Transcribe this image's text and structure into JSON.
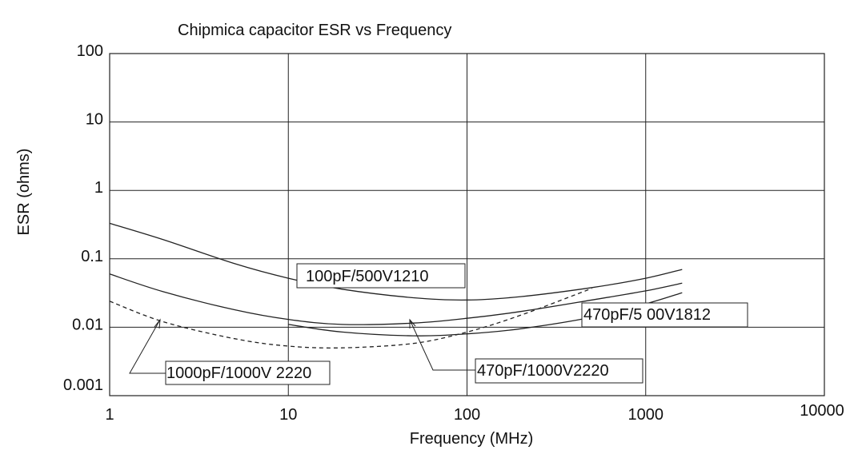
{
  "chart_data": {
    "type": "line",
    "title": "Chipmica capacitor ESR vs Frequency",
    "xlabel": "Frequency (MHz)",
    "ylabel": "ESR (ohms)",
    "x_scale": "log",
    "y_scale": "log",
    "xlim": [
      1,
      10000
    ],
    "ylim": [
      0.001,
      100
    ],
    "grid": true,
    "x_ticks": [
      {
        "value": 1,
        "label": "1"
      },
      {
        "value": 10,
        "label": "10"
      },
      {
        "value": 100,
        "label": "100"
      },
      {
        "value": 1000,
        "label": "1000"
      },
      {
        "value": 10000,
        "label": "10000"
      }
    ],
    "y_ticks": [
      {
        "value": 0.001,
        "label": "0.001"
      },
      {
        "value": 0.01,
        "label": "0.01"
      },
      {
        "value": 0.1,
        "label": "0.1"
      },
      {
        "value": 1,
        "label": "1"
      },
      {
        "value": 10,
        "label": "10"
      },
      {
        "value": 100,
        "label": "100"
      }
    ],
    "series": [
      {
        "name": "100pF/500V1210",
        "style": "solid",
        "color": "#222222",
        "x": [
          1,
          2,
          5,
          10,
          20,
          50,
          100,
          200,
          500,
          1000,
          1600
        ],
        "y": [
          0.33,
          0.19,
          0.085,
          0.052,
          0.036,
          0.027,
          0.025,
          0.028,
          0.038,
          0.052,
          0.07
        ]
      },
      {
        "name": "470pF/500V1812",
        "style": "solid",
        "color": "#222222",
        "x": [
          1,
          2,
          5,
          10,
          20,
          50,
          100,
          200,
          500,
          1000,
          1600
        ],
        "y": [
          0.06,
          0.033,
          0.018,
          0.013,
          0.011,
          0.0115,
          0.0135,
          0.017,
          0.025,
          0.034,
          0.044
        ]
      },
      {
        "name": "470pF/1000V2220",
        "style": "solid",
        "color": "#222222",
        "x": [
          10,
          20,
          50,
          100,
          200,
          500,
          1000,
          1600
        ],
        "y": [
          0.011,
          0.0085,
          0.0075,
          0.008,
          0.0095,
          0.014,
          0.022,
          0.032
        ]
      },
      {
        "name": "1000pF/1000V 2220",
        "style": "dashed",
        "color": "#222222",
        "x": [
          1,
          2,
          5,
          10,
          20,
          50,
          100,
          200,
          500
        ],
        "y": [
          0.024,
          0.012,
          0.0068,
          0.0053,
          0.005,
          0.0058,
          0.0085,
          0.015,
          0.037
        ]
      }
    ],
    "annotations": [
      {
        "id": "ann-100pf-500v1210",
        "text": "100pF/500V1210"
      },
      {
        "id": "ann-470pf-500v1812",
        "text": "470pF/5 00V1812"
      },
      {
        "id": "ann-470pf-1000v2220",
        "text": "470pF/1000V2220"
      },
      {
        "id": "ann-1000pf-1000v2220",
        "text": "1000pF/1000V 2220"
      }
    ]
  }
}
